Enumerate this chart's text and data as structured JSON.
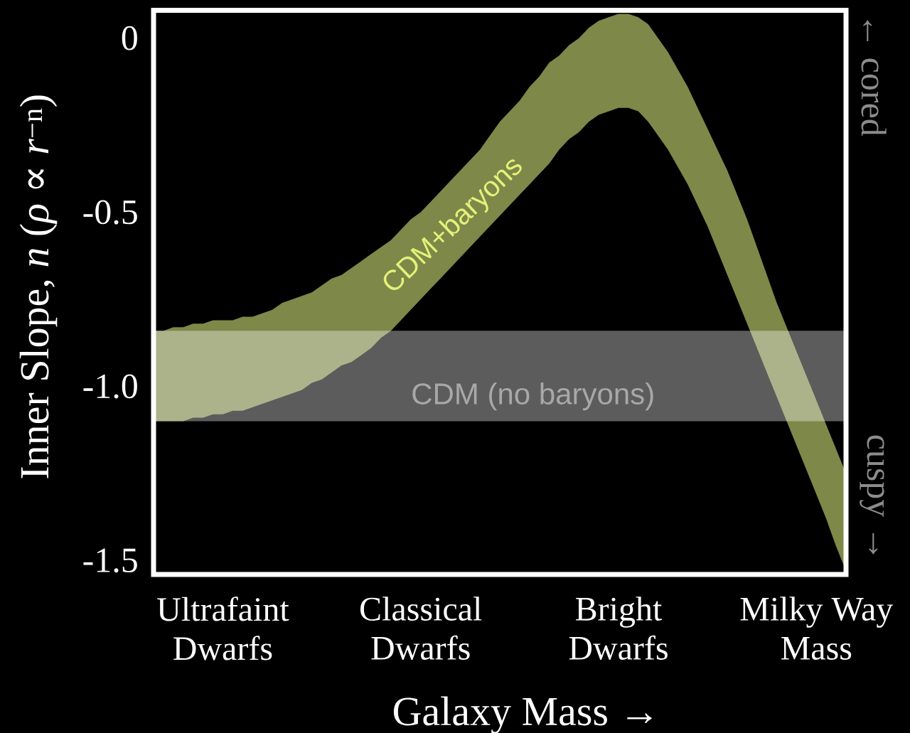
{
  "chart_data": {
    "type": "area",
    "xlabel": "Galaxy Mass →",
    "ylabel": "Inner Slope, *n* (*ρ* ∝ *r*$^{−n}$)",
    "categories": [
      null,
      null,
      null,
      null,
      null,
      null,
      null,
      "Ultrafaint Dwarfs",
      null,
      null,
      null,
      null,
      null,
      null,
      null,
      null,
      null,
      null,
      null,
      null,
      null,
      null,
      null,
      null,
      null,
      null,
      null,
      "Classical Dwarfs",
      null,
      null,
      null,
      null,
      null,
      null,
      null,
      null,
      null,
      null,
      null,
      null,
      null,
      null,
      null,
      null,
      null,
      null,
      null,
      "Bright Dwarfs",
      null,
      null,
      null,
      null,
      null,
      null,
      null,
      null,
      null,
      null,
      null,
      null,
      null,
      null,
      null,
      null,
      null,
      null,
      null,
      "Milky Way Mass",
      null,
      null,
      null
    ],
    "ylim": [
      -1.54,
      0.08
    ],
    "yticks": [
      {
        "value": -1.5,
        "label": "-1.5"
      },
      {
        "value": -1,
        "label": "-1.0"
      },
      {
        "value": -0.5,
        "label": "-0.5"
      },
      0
    ],
    "series": [
      {
        "name": "CDM+baryons",
        "values": [
          null,
          null,
          null,
          null,
          null,
          null,
          null,
          null,
          null,
          null,
          null,
          null,
          null,
          null,
          null,
          null,
          null,
          null,
          null,
          null,
          null,
          null,
          null,
          null,
          null,
          null,
          null,
          null,
          null,
          null,
          null,
          null,
          null,
          null,
          null,
          null,
          null,
          null,
          null,
          null,
          null,
          null,
          null,
          null,
          null,
          null,
          null,
          null,
          null,
          null,
          null,
          null,
          null,
          null,
          null,
          null,
          null,
          null,
          null,
          null,
          null,
          null,
          null,
          null,
          null,
          null,
          null,
          null,
          null,
          null,
          null
        ],
        "upper": [
          -0.84,
          -0.84,
          -0.83,
          -0.83,
          -0.82,
          -0.82,
          -0.81,
          -0.81,
          -0.81,
          -0.8,
          -0.8,
          -0.79,
          -0.78,
          -0.76,
          -0.75,
          -0.74,
          -0.73,
          -0.71,
          -0.69,
          -0.68,
          -0.66,
          -0.64,
          -0.62,
          -0.6,
          -0.58,
          -0.55,
          -0.52,
          -0.5,
          -0.47,
          -0.44,
          -0.41,
          -0.38,
          -0.35,
          -0.32,
          -0.28,
          -0.24,
          -0.21,
          -0.18,
          -0.14,
          -0.11,
          -0.07,
          -0.05,
          -0.02,
          0.0,
          0.03,
          0.05,
          0.06,
          0.07,
          0.07,
          0.06,
          0.04,
          0.0,
          -0.04,
          -0.09,
          -0.14,
          -0.2,
          -0.26,
          -0.32,
          -0.38,
          -0.45,
          -0.52,
          -0.6,
          -0.68,
          -0.76,
          -0.83,
          -0.9,
          -0.97,
          -1.04,
          -1.11,
          -1.18,
          -1.25
        ],
        "lower": [
          -1.1,
          -1.1,
          -1.1,
          -1.1,
          -1.09,
          -1.09,
          -1.08,
          -1.08,
          -1.07,
          -1.07,
          -1.06,
          -1.05,
          -1.04,
          -1.03,
          -1.02,
          -1.01,
          -0.99,
          -0.98,
          -0.96,
          -0.94,
          -0.93,
          -0.91,
          -0.89,
          -0.86,
          -0.84,
          -0.81,
          -0.78,
          -0.75,
          -0.72,
          -0.69,
          -0.66,
          -0.63,
          -0.6,
          -0.57,
          -0.54,
          -0.51,
          -0.48,
          -0.45,
          -0.42,
          -0.39,
          -0.36,
          -0.32,
          -0.29,
          -0.27,
          -0.24,
          -0.22,
          -0.21,
          -0.2,
          -0.2,
          -0.21,
          -0.24,
          -0.28,
          -0.32,
          -0.37,
          -0.42,
          -0.48,
          -0.54,
          -0.61,
          -0.68,
          -0.75,
          -0.82,
          -0.89,
          -0.96,
          -1.03,
          -1.1,
          -1.17,
          -1.24,
          -1.31,
          -1.38,
          -1.46,
          -1.53
        ]
      }
    ],
    "bands": [
      {
        "axis": "y",
        "from": -1.1,
        "to": -0.84,
        "label": "CDM (no baryons)"
      }
    ],
    "annotations": [
      "← cored",
      "cuspy →"
    ]
  }
}
